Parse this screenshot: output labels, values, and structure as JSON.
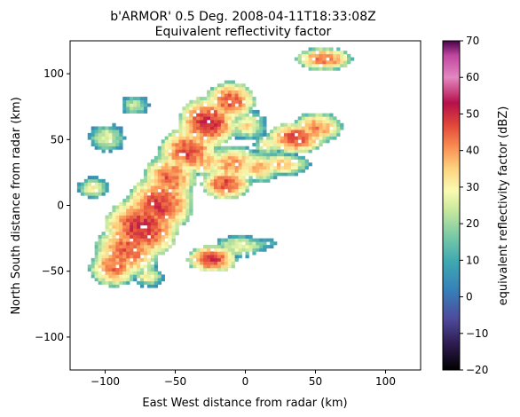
{
  "chart_data": {
    "type": "heatmap",
    "title_line1": "b'ARMOR' 0.5 Deg. 2008-04-11T18:33:08Z",
    "title_line2": "Equivalent reflectivity factor",
    "xlabel": "East West distance from radar (km)",
    "ylabel": "North South distance from radar (km)",
    "xlim": [
      -125,
      125
    ],
    "ylim": [
      -125,
      125
    ],
    "xticks": [
      -100,
      -50,
      0,
      50,
      100
    ],
    "xtick_labels": [
      "−100",
      "−50",
      "0",
      "50",
      "100"
    ],
    "yticks": [
      -100,
      -50,
      0,
      50,
      100
    ],
    "ytick_labels": [
      "−100",
      "−50",
      "0",
      "50",
      "100"
    ],
    "grid": false,
    "colorbar": {
      "label": "equivalent reflectivity factor (dBZ)",
      "range": [
        -20,
        70
      ],
      "ticks": [
        -20,
        -10,
        0,
        10,
        20,
        30,
        40,
        50,
        60,
        70
      ],
      "tick_labels": [
        "−20",
        "−10",
        "0",
        "10",
        "20",
        "30",
        "40",
        "50",
        "60",
        "70"
      ],
      "colormap": "Spectral_r",
      "colormap_stops": [
        {
          "v": -20,
          "color": "#000000"
        },
        {
          "v": -13,
          "color": "#2d1b4e"
        },
        {
          "v": -6,
          "color": "#4e4a9c"
        },
        {
          "v": 2,
          "color": "#3681b9"
        },
        {
          "v": 10,
          "color": "#41aab0"
        },
        {
          "v": 17,
          "color": "#7dcba5"
        },
        {
          "v": 24,
          "color": "#cbe99d"
        },
        {
          "v": 29,
          "color": "#f9fbb2"
        },
        {
          "v": 35,
          "color": "#fdd380"
        },
        {
          "v": 41,
          "color": "#f98e52"
        },
        {
          "v": 47,
          "color": "#e0473a"
        },
        {
          "v": 53,
          "color": "#b5104b"
        },
        {
          "v": 60,
          "color": "#e487c1"
        },
        {
          "v": 66,
          "color": "#c0479f"
        },
        {
          "v": 70,
          "color": "#49004a"
        }
      ]
    },
    "echo_cells": [
      {
        "x": -95,
        "y": -48,
        "rx": 12,
        "ry": 10,
        "peak": 44
      },
      {
        "x": -85,
        "y": -35,
        "rx": 16,
        "ry": 14,
        "peak": 46
      },
      {
        "x": -75,
        "y": -18,
        "rx": 18,
        "ry": 16,
        "peak": 50
      },
      {
        "x": -62,
        "y": 0,
        "rx": 16,
        "ry": 15,
        "peak": 48
      },
      {
        "x": -55,
        "y": 20,
        "rx": 13,
        "ry": 12,
        "peak": 45
      },
      {
        "x": -42,
        "y": 40,
        "rx": 14,
        "ry": 12,
        "peak": 47
      },
      {
        "x": -28,
        "y": 62,
        "rx": 14,
        "ry": 13,
        "peak": 50
      },
      {
        "x": -12,
        "y": 78,
        "rx": 12,
        "ry": 10,
        "peak": 46
      },
      {
        "x": -30,
        "y": 32,
        "rx": 10,
        "ry": 8,
        "peak": 38
      },
      {
        "x": -10,
        "y": 30,
        "rx": 14,
        "ry": 10,
        "peak": 40
      },
      {
        "x": 8,
        "y": 28,
        "rx": 12,
        "ry": 8,
        "peak": 38
      },
      {
        "x": 25,
        "y": 30,
        "rx": 14,
        "ry": 6,
        "peak": 36
      },
      {
        "x": -15,
        "y": 15,
        "rx": 12,
        "ry": 8,
        "peak": 47
      },
      {
        "x": 35,
        "y": 50,
        "rx": 14,
        "ry": 8,
        "peak": 47
      },
      {
        "x": 50,
        "y": 58,
        "rx": 12,
        "ry": 8,
        "peak": 42
      },
      {
        "x": 55,
        "y": 110,
        "rx": 14,
        "ry": 6,
        "peak": 44
      },
      {
        "x": -25,
        "y": -42,
        "rx": 12,
        "ry": 7,
        "peak": 48
      },
      {
        "x": -5,
        "y": -32,
        "rx": 14,
        "ry": 6,
        "peak": 30
      },
      {
        "x": 12,
        "y": -30,
        "rx": 10,
        "ry": 4,
        "peak": 15
      },
      {
        "x": -110,
        "y": 12,
        "rx": 8,
        "ry": 6,
        "peak": 30
      },
      {
        "x": -100,
        "y": 50,
        "rx": 10,
        "ry": 8,
        "peak": 28
      },
      {
        "x": -80,
        "y": 75,
        "rx": 8,
        "ry": 6,
        "peak": 25
      },
      {
        "x": -70,
        "y": -55,
        "rx": 8,
        "ry": 6,
        "peak": 30
      },
      {
        "x": 15,
        "y": 45,
        "rx": 8,
        "ry": 6,
        "peak": 30
      },
      {
        "x": 0,
        "y": 60,
        "rx": 10,
        "ry": 8,
        "peak": 33
      }
    ]
  }
}
